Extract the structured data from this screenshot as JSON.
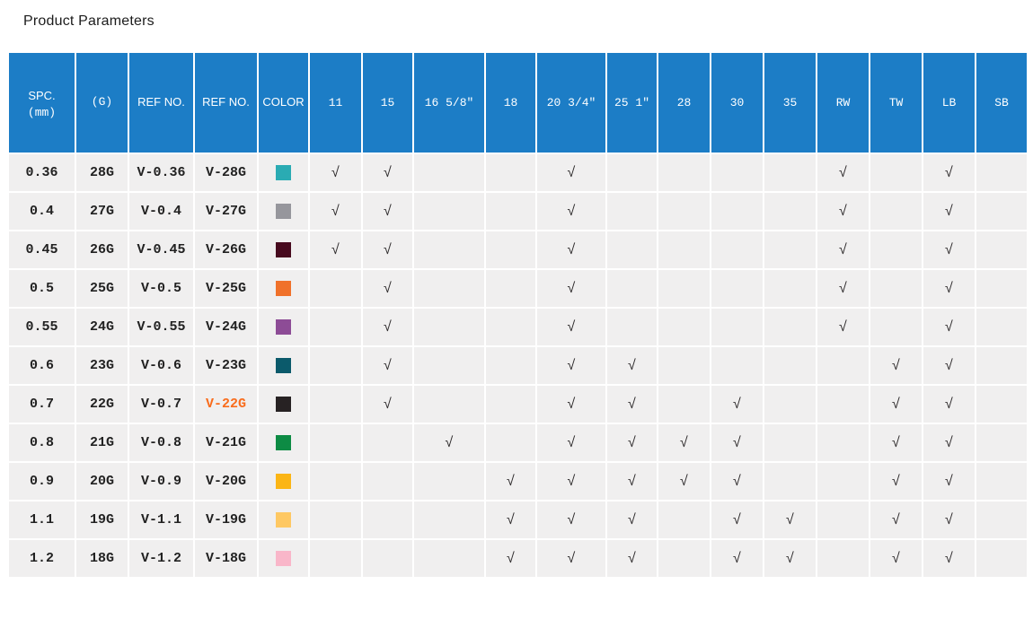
{
  "page": {
    "title": "Product Parameters"
  },
  "colors": {
    "header_bg": "#1c7dc6",
    "row_bg": "#f0efef",
    "highlight_text": "#f96c1c",
    "check_color": "#2e2b2c"
  },
  "table": {
    "check_glyph": "√",
    "info_headers": [
      {
        "label": "SPC.",
        "sub": "(mm)"
      },
      {
        "label": "(G)"
      },
      {
        "label": "REF NO."
      },
      {
        "label": "REF NO."
      },
      {
        "label": "COLOR"
      }
    ],
    "size_headers": [
      "11",
      "15",
      "16 5/8″",
      "18",
      "20 3/4″",
      "25 1″",
      "28",
      "30",
      "35",
      "RW",
      "TW",
      "LB",
      "SB"
    ],
    "rows": [
      {
        "spc": "0.36",
        "gauge": "28G",
        "ref_no": "V-0.36",
        "ref_no_g": "V-28G",
        "ref_no_g_highlight": false,
        "color": "#2aabb3",
        "checks": [
          1,
          1,
          0,
          0,
          1,
          0,
          0,
          0,
          0,
          1,
          0,
          1,
          0
        ]
      },
      {
        "spc": "0.4",
        "gauge": "27G",
        "ref_no": "V-0.4",
        "ref_no_g": "V-27G",
        "ref_no_g_highlight": false,
        "color": "#96969c",
        "checks": [
          1,
          1,
          0,
          0,
          1,
          0,
          0,
          0,
          0,
          1,
          0,
          1,
          0
        ]
      },
      {
        "spc": "0.45",
        "gauge": "26G",
        "ref_no": "V-0.45",
        "ref_no_g": "V-26G",
        "ref_no_g_highlight": false,
        "color": "#470a1e",
        "checks": [
          1,
          1,
          0,
          0,
          1,
          0,
          0,
          0,
          0,
          1,
          0,
          1,
          0
        ]
      },
      {
        "spc": "0.5",
        "gauge": "25G",
        "ref_no": "V-0.5",
        "ref_no_g": "V-25G",
        "ref_no_g_highlight": false,
        "color": "#f0712a",
        "checks": [
          0,
          1,
          0,
          0,
          1,
          0,
          0,
          0,
          0,
          1,
          0,
          1,
          0
        ]
      },
      {
        "spc": "0.55",
        "gauge": "24G",
        "ref_no": "V-0.55",
        "ref_no_g": "V-24G",
        "ref_no_g_highlight": false,
        "color": "#8d4c96",
        "checks": [
          0,
          1,
          0,
          0,
          1,
          0,
          0,
          0,
          0,
          1,
          0,
          1,
          0
        ]
      },
      {
        "spc": "0.6",
        "gauge": "23G",
        "ref_no": "V-0.6",
        "ref_no_g": "V-23G",
        "ref_no_g_highlight": false,
        "color": "#0b5a6b",
        "checks": [
          0,
          1,
          0,
          0,
          1,
          1,
          0,
          0,
          0,
          0,
          1,
          1,
          0
        ]
      },
      {
        "spc": "0.7",
        "gauge": "22G",
        "ref_no": "V-0.7",
        "ref_no_g": "V-22G",
        "ref_no_g_highlight": true,
        "color": "#272223",
        "checks": [
          0,
          1,
          0,
          0,
          1,
          1,
          0,
          1,
          0,
          0,
          1,
          1,
          0
        ]
      },
      {
        "spc": "0.8",
        "gauge": "21G",
        "ref_no": "V-0.8",
        "ref_no_g": "V-21G",
        "ref_no_g_highlight": false,
        "color": "#0d8b44",
        "checks": [
          0,
          0,
          1,
          0,
          1,
          1,
          1,
          1,
          0,
          0,
          1,
          1,
          0
        ]
      },
      {
        "spc": "0.9",
        "gauge": "20G",
        "ref_no": "V-0.9",
        "ref_no_g": "V-20G",
        "ref_no_g_highlight": false,
        "color": "#fbb515",
        "checks": [
          0,
          0,
          0,
          1,
          1,
          1,
          1,
          1,
          0,
          0,
          1,
          1,
          0
        ]
      },
      {
        "spc": "1.1",
        "gauge": "19G",
        "ref_no": "V-1.1",
        "ref_no_g": "V-19G",
        "ref_no_g_highlight": false,
        "color": "#fec863",
        "checks": [
          0,
          0,
          0,
          1,
          1,
          1,
          0,
          1,
          1,
          0,
          1,
          1,
          0
        ]
      },
      {
        "spc": "1.2",
        "gauge": "18G",
        "ref_no": "V-1.2",
        "ref_no_g": "V-18G",
        "ref_no_g_highlight": false,
        "color": "#f9b6c9",
        "checks": [
          0,
          0,
          0,
          1,
          1,
          1,
          0,
          1,
          1,
          0,
          1,
          1,
          0
        ]
      }
    ]
  }
}
